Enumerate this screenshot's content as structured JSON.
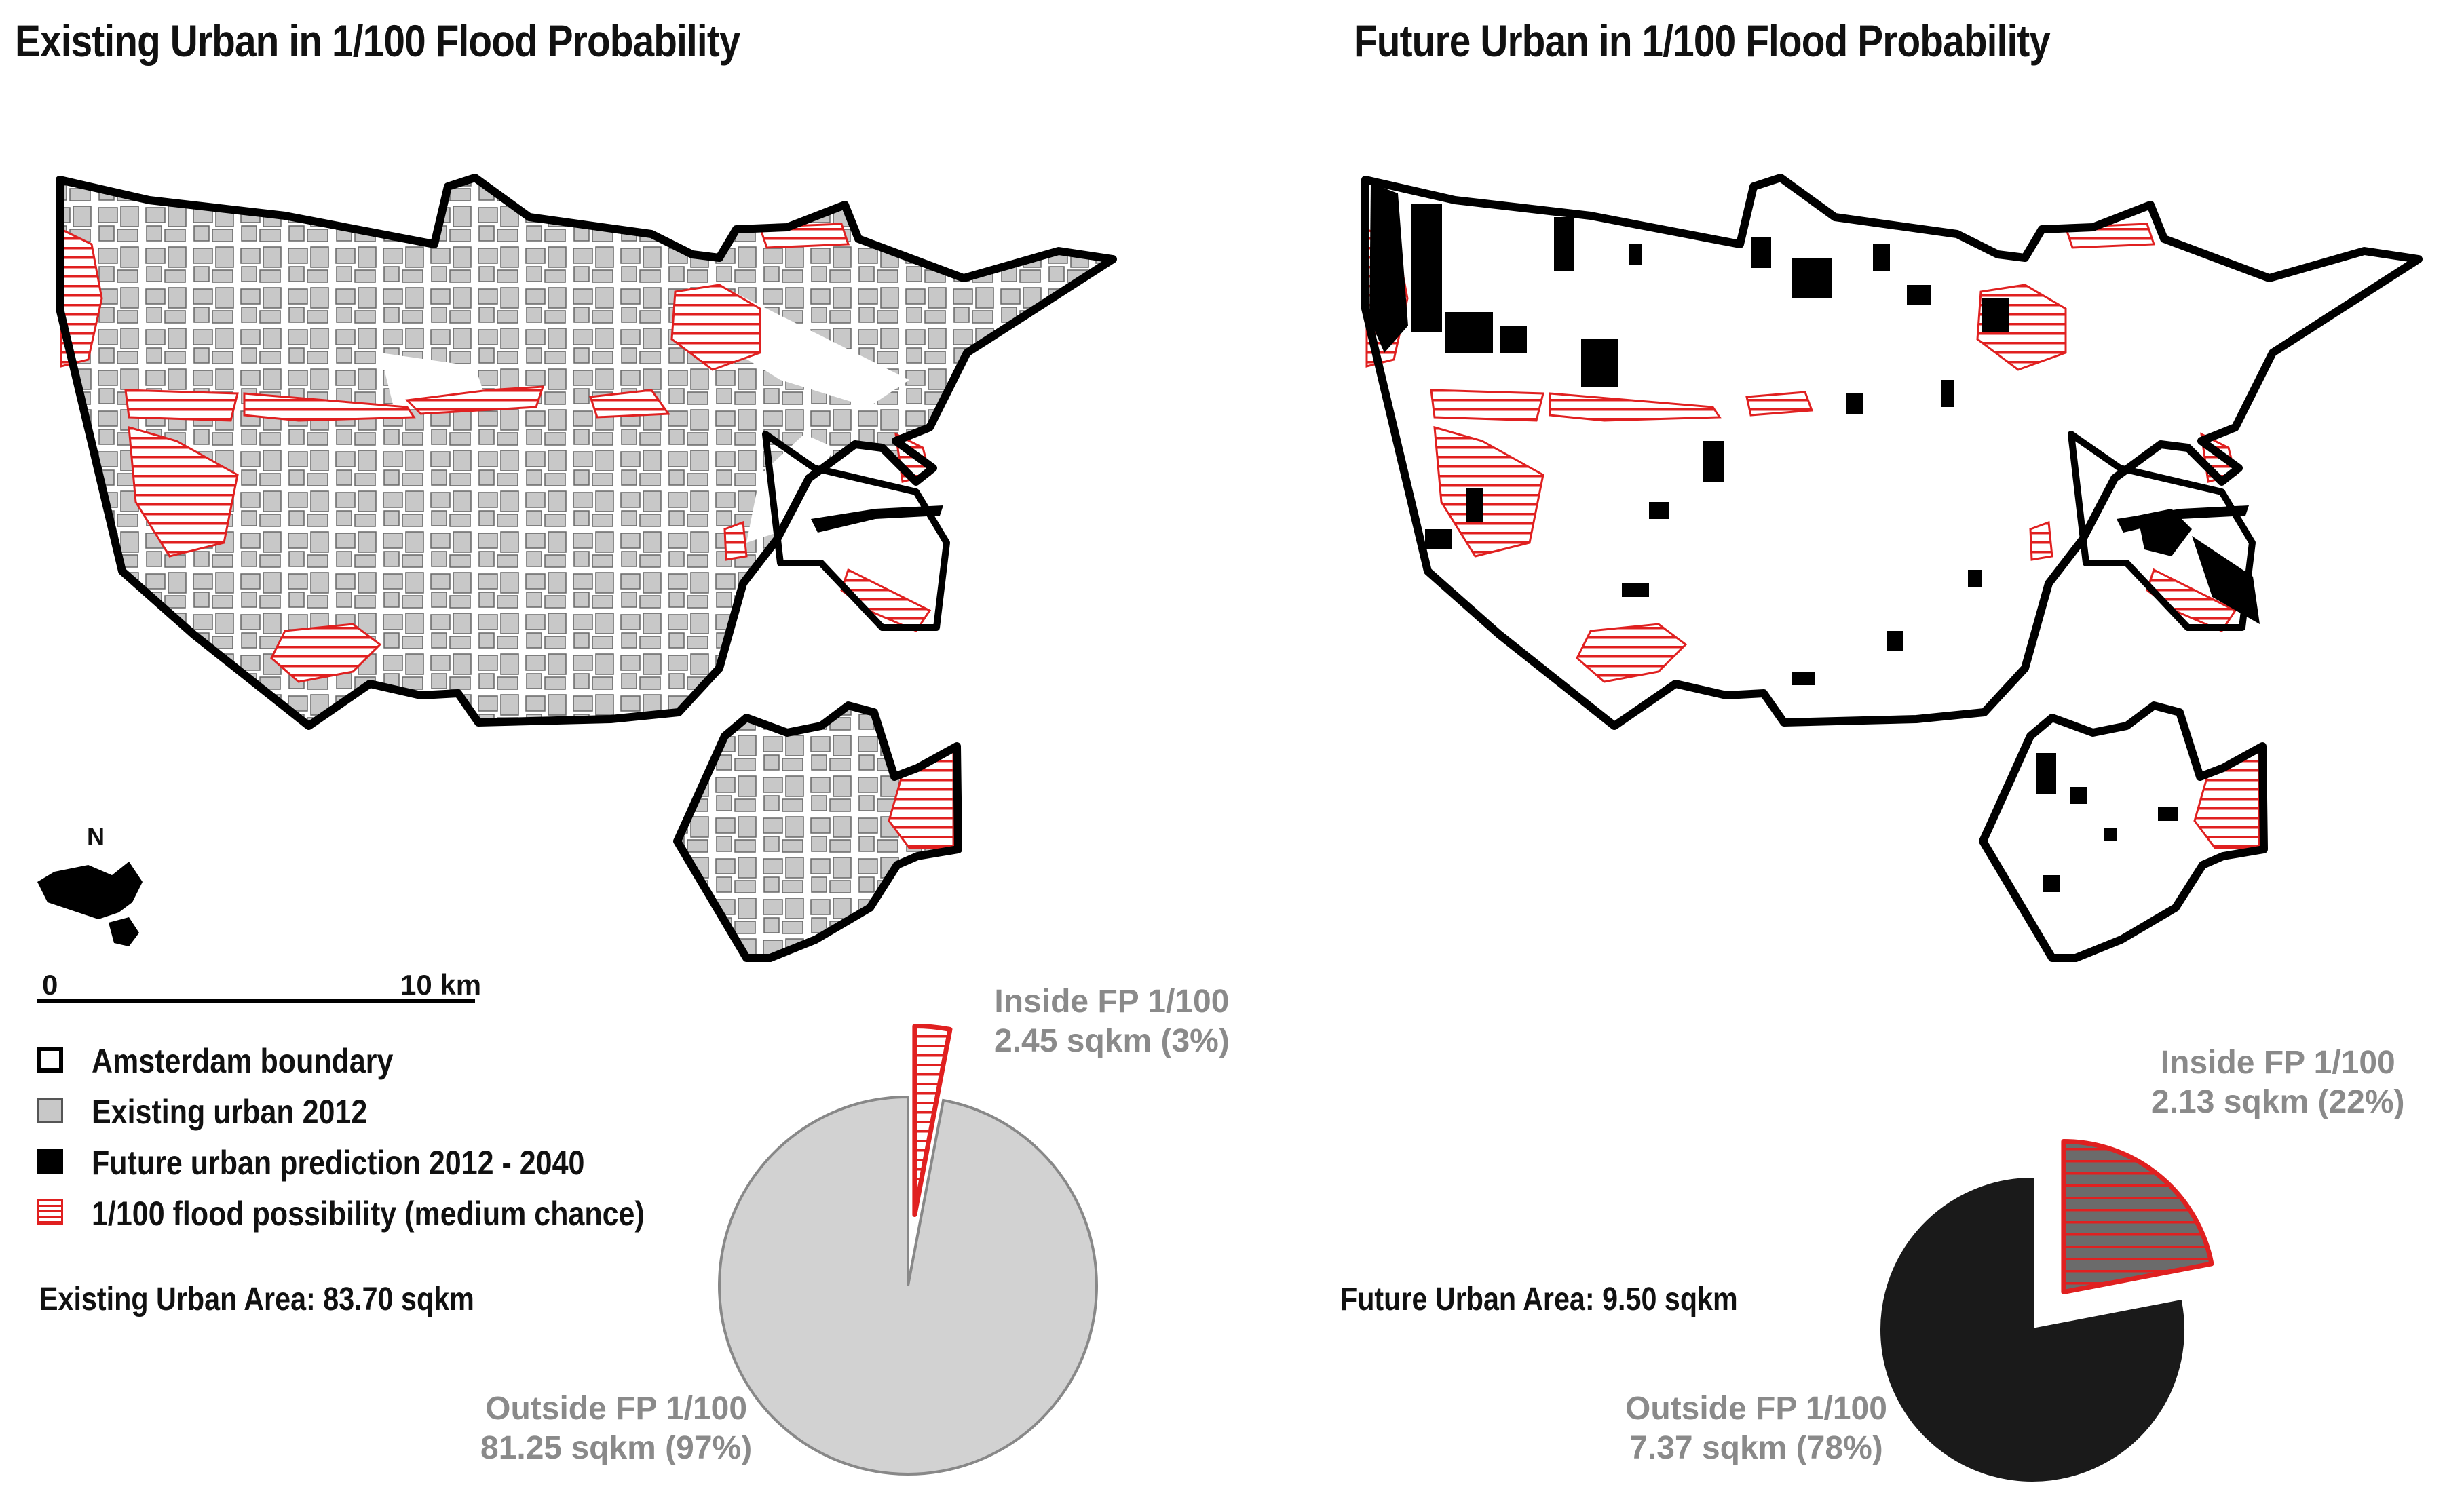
{
  "left_panel": {
    "title": "Existing Urban in 1/100 Flood Probability",
    "area_text": "Existing Urban Area: 83.70 sqkm",
    "pie": {
      "inside_label": "Inside FP 1/100",
      "inside_value": "2.45 sqkm (3%)",
      "inside_fraction": 0.03,
      "outside_label": "Outside FP 1/100",
      "outside_value": "81.25 sqkm (97%)",
      "outside_fraction": 0.97
    }
  },
  "right_panel": {
    "title": "Future Urban in 1/100 Flood Probability",
    "area_text": "Future Urban Area: 9.50 sqkm",
    "pie": {
      "inside_label": "Inside FP 1/100",
      "inside_value": "2.13 sqkm (22%)",
      "inside_fraction": 0.22,
      "outside_label": "Outside FP 1/100",
      "outside_value": "7.37 sqkm (78%)",
      "outside_fraction": 0.78
    }
  },
  "north_arrow": {
    "label": "N"
  },
  "scale_bar": {
    "start": "0",
    "end": "10 km"
  },
  "legend": {
    "items": [
      {
        "label": "Amsterdam boundary",
        "swatch": "boundary"
      },
      {
        "label": "Existing urban 2012",
        "swatch": "existing"
      },
      {
        "label": "Future urban prediction 2012 - 2040",
        "swatch": "future"
      },
      {
        "label": "1/100 flood possibility (medium chance)",
        "swatch": "flood"
      }
    ]
  },
  "colors": {
    "boundary": "#000000",
    "existing_urban": "#c8c8c8",
    "future_urban": "#000000",
    "flood": "#e02020",
    "label_gray": "#8a8a8a"
  }
}
